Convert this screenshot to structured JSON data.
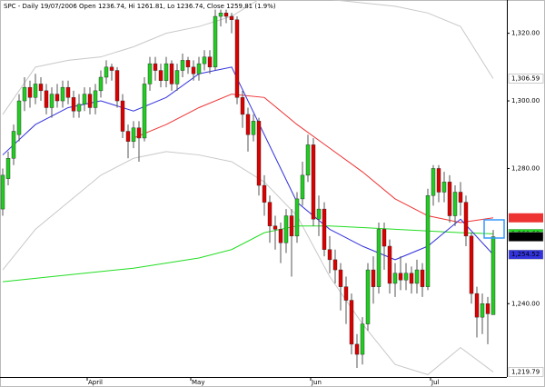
{
  "chart_data": {
    "type": "candlestick",
    "title": "SPC - Daily 19/07/2006 Open 1236.74, Hi 1261.81, Lo 1236.74, Close 1259.81 (1.9%)",
    "categories": [
      null,
      null,
      null,
      null,
      null,
      null,
      null,
      null,
      null,
      null,
      null,
      null,
      null,
      null,
      null,
      null,
      "April",
      null,
      null,
      null,
      null,
      null,
      null,
      null,
      null,
      null,
      null,
      null,
      null,
      null,
      null,
      null,
      null,
      null,
      null,
      "May",
      null,
      null,
      null,
      null,
      null,
      null,
      null,
      null,
      null,
      null,
      null,
      null,
      null,
      null,
      null,
      null,
      null,
      null,
      null,
      null,
      null,
      "Jun",
      null,
      null,
      null,
      null,
      null,
      null,
      null,
      null,
      null,
      null,
      null,
      null,
      null,
      null,
      null,
      null,
      null,
      null,
      null,
      null,
      null,
      "Jul",
      null,
      null,
      null,
      null,
      null,
      null,
      null,
      null,
      null,
      null,
      null
    ],
    "open": [
      1268,
      1277,
      1283,
      1290,
      1300,
      1304,
      1301,
      1305,
      1303,
      1298,
      1302,
      1300,
      1304,
      1301,
      1297,
      1299,
      1302,
      1298,
      1303,
      1307,
      1310,
      1309,
      1300,
      1291,
      1288,
      1292,
      1289,
      1305,
      1311,
      1309,
      1306,
      1311,
      1305,
      1309,
      1312,
      1310,
      1308,
      1311,
      1313,
      1310,
      1325,
      1326,
      1325,
      1324,
      1301,
      1296,
      1290,
      1294,
      1275,
      1270,
      1263,
      1262,
      1258,
      1266,
      1260,
      1271,
      1278,
      1287,
      1265,
      1268,
      1256,
      1253,
      1250,
      1245,
      1241,
      1228,
      1225,
      1234,
      1250,
      1245,
      1262,
      1257,
      1246,
      1249,
      1247,
      1249,
      1246,
      1250,
      1245,
      1272,
      1280,
      1273,
      1276,
      1266,
      1273,
      1270,
      1260,
      1243,
      1236,
      1240,
      1236.74
    ],
    "high": [
      1280,
      1285,
      1293,
      1302,
      1307,
      1306,
      1308,
      1307,
      1305,
      1304,
      1305,
      1306,
      1306,
      1303,
      1302,
      1304,
      1304,
      1305,
      1309,
      1312,
      1311,
      1310,
      1302,
      1293,
      1294,
      1294,
      1307,
      1313,
      1313,
      1311,
      1313,
      1312,
      1311,
      1314,
      1313,
      1312,
      1313,
      1315,
      1315,
      1327,
      1327,
      1327,
      1326,
      1325,
      1303,
      1298,
      1296,
      1295,
      1278,
      1272,
      1266,
      1264,
      1268,
      1268,
      1273,
      1282,
      1290,
      1289,
      1272,
      1270,
      1260,
      1256,
      1252,
      1248,
      1243,
      1231,
      1236,
      1252,
      1254,
      1264,
      1264,
      1259,
      1252,
      1254,
      1252,
      1251,
      1253,
      1252,
      1274,
      1281,
      1281,
      1279,
      1278,
      1275,
      1276,
      1272,
      1261,
      1245,
      1243,
      1242,
      1261.81
    ],
    "low": [
      1266,
      1275,
      1281,
      1288,
      1297,
      1298,
      1299,
      1300,
      1296,
      1295,
      1298,
      1298,
      1299,
      1295,
      1295,
      1297,
      1296,
      1296,
      1301,
      1305,
      1306,
      1298,
      1289,
      1283,
      1286,
      1282,
      1288,
      1303,
      1306,
      1304,
      1304,
      1303,
      1303,
      1307,
      1308,
      1306,
      1306,
      1309,
      1308,
      1309,
      1322,
      1323,
      1320,
      1299,
      1292,
      1285,
      1288,
      1272,
      1266,
      1258,
      1256,
      1252,
      1255,
      1248,
      1258,
      1269,
      1276,
      1263,
      1260,
      1254,
      1249,
      1246,
      1238,
      1234,
      1225,
      1221,
      1222,
      1232,
      1240,
      1243,
      1250,
      1243,
      1242,
      1244,
      1244,
      1243,
      1243,
      1242,
      1244,
      1269,
      1270,
      1270,
      1264,
      1263,
      1266,
      1257,
      1240,
      1230,
      1231,
      1228,
      1236.74
    ],
    "close": [
      1278,
      1283,
      1291,
      1300,
      1304,
      1301,
      1305,
      1303,
      1298,
      1302,
      1300,
      1304,
      1301,
      1297,
      1299,
      1302,
      1298,
      1303,
      1307,
      1310,
      1309,
      1300,
      1291,
      1288,
      1292,
      1289,
      1305,
      1311,
      1309,
      1306,
      1311,
      1305,
      1309,
      1312,
      1310,
      1308,
      1311,
      1313,
      1310,
      1325,
      1326,
      1325,
      1324,
      1301,
      1296,
      1290,
      1294,
      1275,
      1270,
      1263,
      1262,
      1258,
      1266,
      1260,
      1271,
      1278,
      1287,
      1265,
      1268,
      1256,
      1253,
      1250,
      1245,
      1241,
      1228,
      1225,
      1234,
      1250,
      1245,
      1262,
      1257,
      1246,
      1249,
      1247,
      1249,
      1246,
      1250,
      1245,
      1272,
      1280,
      1273,
      1276,
      1266,
      1273,
      1270,
      1260,
      1243,
      1236,
      1240,
      1237,
      1259.81
    ],
    "up_color": "#22cc22",
    "down_color": "#dd0000",
    "indicators": [
      {
        "color": "#c8c8c8",
        "x": [
          0,
          6,
          12,
          18,
          24,
          30,
          36,
          42,
          48,
          54,
          60,
          66,
          72,
          78,
          84,
          90
        ],
        "values": [
          1296,
          1310,
          1312,
          1313,
          1316,
          1320,
          1322,
          1325,
          1331,
          1332,
          1330,
          1329,
          1328,
          1326,
          1322,
          1306.59
        ]
      },
      {
        "color": "#c8c8c8",
        "x": [
          0,
          6,
          12,
          18,
          24,
          30,
          36,
          42,
          48,
          54,
          60,
          66,
          72,
          78,
          84,
          90
        ],
        "values": [
          1250,
          1262,
          1270,
          1278,
          1283,
          1285,
          1284,
          1282,
          1276,
          1266,
          1248,
          1234,
          1222,
          1219,
          1227,
          1219.79
        ]
      },
      {
        "color": "#22dd22",
        "x": [
          0,
          6,
          12,
          18,
          24,
          30,
          36,
          42,
          48,
          54,
          60,
          66,
          72,
          78,
          84,
          90
        ],
        "values": [
          1246.5,
          1247.5,
          1248.5,
          1249.5,
          1250.5,
          1252,
          1253.5,
          1256,
          1261,
          1263,
          1263,
          1262.5,
          1262,
          1261.5,
          1261,
          1260.68
        ]
      },
      {
        "color": "#ee3333",
        "x": [
          24,
          30,
          36,
          42,
          48,
          54,
          60,
          66,
          72,
          78,
          84,
          90
        ],
        "values": [
          1289,
          1293,
          1298,
          1302,
          1301,
          1293,
          1286,
          1279,
          1271,
          1266,
          1264,
          1265.4
        ]
      },
      {
        "color": "#3333dd",
        "x": [
          0,
          6,
          12,
          18,
          24,
          30,
          36,
          42,
          48,
          54,
          60,
          66,
          72,
          78,
          84,
          90
        ],
        "values": [
          1284,
          1293,
          1298,
          1300,
          1297,
          1301,
          1308,
          1310,
          1290,
          1270,
          1262,
          1257,
          1253,
          1257,
          1265,
          1254.52
        ]
      }
    ],
    "price_tags": [
      {
        "value": 1306.59,
        "label": "1,306.59",
        "color": "#ffffff",
        "text_color": "#000000"
      },
      {
        "value": 1260.68,
        "label": "1,260.68",
        "color": "#22dd22",
        "text_color": "#000000"
      },
      {
        "value": 1259.81,
        "label": "1,259.81",
        "color": "#000000",
        "text_color": "#ffffff"
      },
      {
        "value": 1254.52,
        "label": "1,254.52",
        "color": "#3333dd",
        "text_color": "#ffffff"
      },
      {
        "value": 1219.79,
        "label": "1,219.79",
        "color": "#ffffff",
        "text_color": "#000000"
      }
    ],
    "ylim": [
      1218.3,
      1328.5
    ],
    "yticks": [
      {
        "value": 1240,
        "label": "1,240.00"
      },
      {
        "value": 1280,
        "label": "1,280.00"
      },
      {
        "value": 1300,
        "label": "1,300.00"
      },
      {
        "value": 1320,
        "label": "1,320.00"
      }
    ]
  }
}
